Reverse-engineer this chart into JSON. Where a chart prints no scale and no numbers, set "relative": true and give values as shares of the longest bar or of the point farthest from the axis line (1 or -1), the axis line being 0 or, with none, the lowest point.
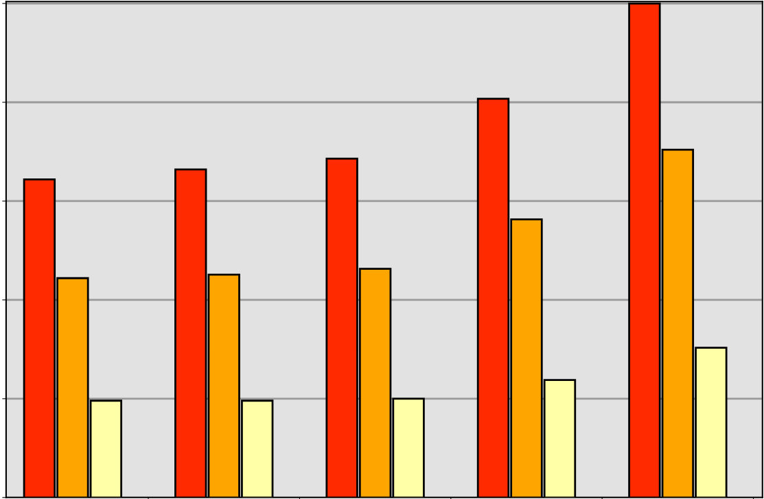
{
  "chart_data": {
    "type": "bar",
    "relative": true,
    "grid": "y",
    "categories": [
      null,
      null,
      null,
      null,
      null
    ],
    "series": [
      {
        "color": "#ff2a00",
        "values": [
          0.644,
          0.664,
          0.686,
          0.807,
          1.0
        ]
      },
      {
        "color": "#ffa500",
        "values": [
          0.444,
          0.451,
          0.463,
          0.563,
          0.704
        ]
      },
      {
        "color": "#ffffa8",
        "values": [
          0.196,
          0.196,
          0.2,
          0.238,
          0.303
        ]
      }
    ]
  }
}
